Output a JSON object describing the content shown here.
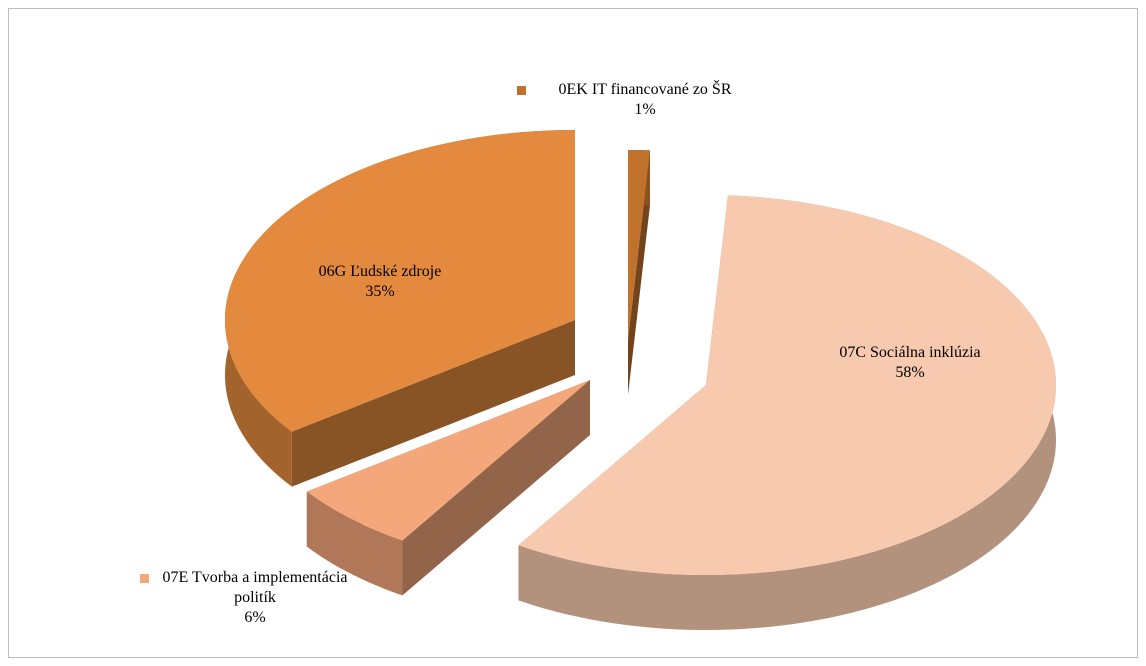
{
  "chart_data": {
    "type": "pie3d",
    "categories": [
      "0EK IT financované zo ŠR",
      "07C Sociálna inklúzia",
      "07E Tvorba a implementácia politík",
      "06G Ľudské zdroje"
    ],
    "values": [
      1,
      58,
      6,
      35
    ],
    "value_labels": [
      "1%",
      "58%",
      "6%",
      "35%"
    ],
    "colors": [
      "#c0722d",
      "#f7c9ae",
      "#f4a77a",
      "#e38a3e"
    ]
  }
}
